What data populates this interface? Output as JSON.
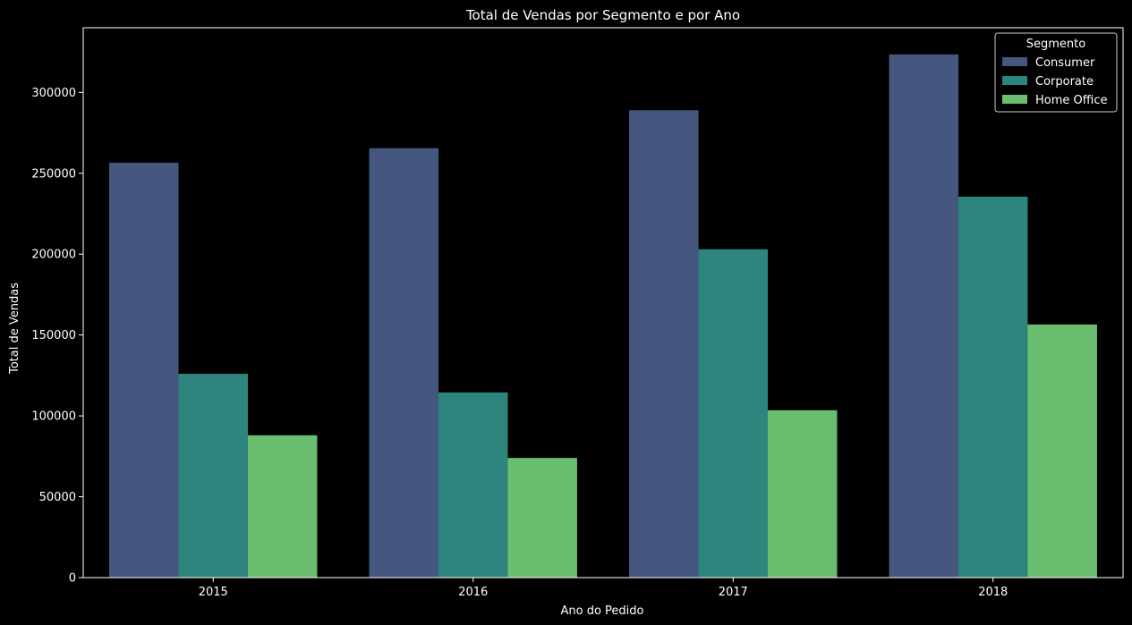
{
  "chart_data": {
    "type": "bar",
    "title": "Total de Vendas por Segmento e por Ano",
    "xlabel": "Ano do Pedido",
    "ylabel": "Total de Vendas",
    "categories": [
      "2015",
      "2016",
      "2017",
      "2018"
    ],
    "series": [
      {
        "name": "Consumer",
        "color": "#45577f",
        "values": [
          256500,
          265500,
          289000,
          323500
        ]
      },
      {
        "name": "Corporate",
        "color": "#2e857e",
        "values": [
          126000,
          114500,
          203000,
          235500
        ]
      },
      {
        "name": "Home Office",
        "color": "#6bbe6f",
        "values": [
          88000,
          74000,
          103500,
          156500
        ]
      }
    ],
    "ylim": [
      0,
      340000
    ],
    "yticks": [
      0,
      50000,
      100000,
      150000,
      200000,
      250000,
      300000
    ],
    "legend": {
      "title": "Segmento",
      "position": "top-right"
    },
    "grid": false
  }
}
